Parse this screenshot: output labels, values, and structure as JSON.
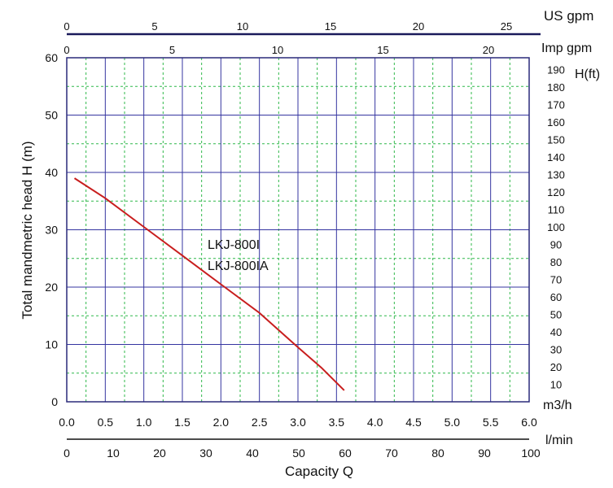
{
  "chart_data": {
    "type": "line",
    "title": "",
    "xlabel": "Capacity Q",
    "ylabel": "Total mandmetric head H (m)",
    "x_unit": "m3/h",
    "xlim": [
      0,
      6.0
    ],
    "ylim": [
      0,
      60
    ],
    "x_ticks": [
      "0.0",
      "0.5",
      "1.0",
      "1.5",
      "2.0",
      "2.5",
      "3.0",
      "3.5",
      "4.0",
      "4.5",
      "5.0",
      "5.5",
      "6.0"
    ],
    "y_ticks": [
      "0",
      "10",
      "20",
      "30",
      "40",
      "50",
      "60"
    ],
    "grid": true,
    "series": [
      {
        "name": "LKJ-800I LKJ-800IA",
        "x": [
          0.1,
          0.5,
          1.0,
          1.5,
          2.0,
          2.5,
          3.0,
          3.3,
          3.6
        ],
        "y": [
          39,
          35.5,
          30.5,
          25.5,
          20.5,
          15.5,
          9.5,
          6,
          2
        ]
      }
    ],
    "curve_labels": [
      "LKJ-800I",
      "LKJ-800IA"
    ],
    "secondary_axes": {
      "lpm": {
        "label": "l/min",
        "lim": [
          0,
          100
        ],
        "ticks": [
          "0",
          "10",
          "20",
          "30",
          "40",
          "50",
          "60",
          "70",
          "80",
          "90",
          "100"
        ]
      },
      "us_gpm": {
        "label": "US gpm",
        "ticks": [
          "0",
          "5",
          "10",
          "15",
          "20",
          "25"
        ]
      },
      "imp_gpm": {
        "label": "Imp gpm",
        "ticks": [
          "0",
          "5",
          "10",
          "15",
          "20"
        ]
      },
      "head_ft": {
        "label": "H(ft)",
        "ticks": [
          "10",
          "20",
          "30",
          "40",
          "50",
          "60",
          "70",
          "80",
          "90",
          "100",
          "110",
          "120",
          "130",
          "140",
          "150",
          "160",
          "170",
          "180",
          "190"
        ]
      }
    },
    "colors": {
      "curve": "#c81e1e",
      "major_grid": "#3535a0",
      "minor_grid": "#2fb84a",
      "frame": "#2a2a7a"
    }
  }
}
